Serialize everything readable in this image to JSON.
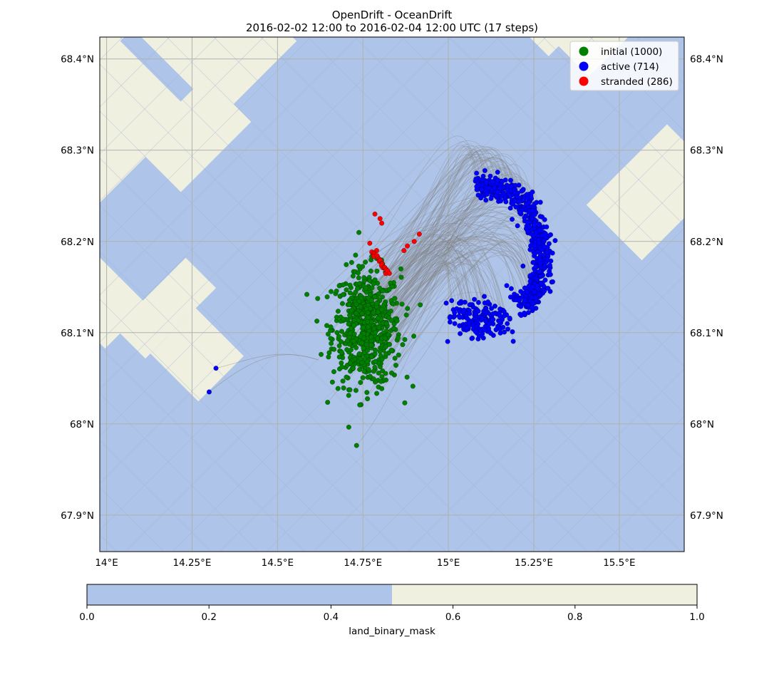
{
  "figure": {
    "title_line1": "OpenDrift - OceanDrift",
    "title_line2": "2016-02-02 12:00 to 2016-02-04 12:00 UTC (17 steps)"
  },
  "chart_data": [
    {
      "type": "scatter",
      "title": "OpenDrift - OceanDrift",
      "subtitle": "2016-02-02 12:00 to 2016-02-04 12:00 UTC (17 steps)",
      "xlim": [
        13.98,
        15.69
      ],
      "ylim": [
        67.86,
        68.424
      ],
      "x_ticks": [
        {
          "value": 14.0,
          "label": "14°E"
        },
        {
          "value": 14.25,
          "label": "14.25°E"
        },
        {
          "value": 14.5,
          "label": "14.5°E"
        },
        {
          "value": 14.75,
          "label": "14.75°E"
        },
        {
          "value": 15.0,
          "label": "15°E"
        },
        {
          "value": 15.25,
          "label": "15.25°E"
        },
        {
          "value": 15.5,
          "label": "15.5°E"
        }
      ],
      "y_ticks": [
        {
          "value": 67.9,
          "label": "67.9°N"
        },
        {
          "value": 68.0,
          "label": "68°N"
        },
        {
          "value": 68.1,
          "label": "68.1°N"
        },
        {
          "value": 68.2,
          "label": "68.2°N"
        },
        {
          "value": 68.3,
          "label": "68.3°N"
        },
        {
          "value": 68.4,
          "label": "68.4°N"
        }
      ],
      "grid": true,
      "legend_position": "top-right",
      "colors": {
        "ocean": "#aec4e8",
        "land": "#f0f0e0",
        "trajectory": "#808080",
        "grid": "#b0b0b0"
      },
      "series": [
        {
          "name": "initial (1000)",
          "color": "#008000",
          "count": 1000,
          "center": [
            14.76,
            68.105
          ],
          "spread": [
            0.05,
            0.032
          ]
        },
        {
          "name": "active (714)",
          "color": "#0000ff",
          "count": 714
        },
        {
          "name": "stranded (286)",
          "color": "#ff0000",
          "count": 286,
          "sample_points": [
            [
              14.785,
              68.23
            ],
            [
              14.8,
              68.225
            ],
            [
              14.805,
              68.22
            ],
            [
              14.77,
              68.198
            ],
            [
              14.79,
              68.19
            ],
            [
              14.8,
              68.18
            ],
            [
              14.81,
              68.172
            ],
            [
              14.82,
              68.168
            ],
            [
              14.87,
              68.19
            ],
            [
              14.88,
              68.195
            ],
            [
              14.9,
              68.2
            ],
            [
              14.915,
              68.208
            ]
          ]
        }
      ],
      "outlier_active_points": [
        [
          14.32,
          68.061
        ],
        [
          14.3,
          68.035
        ]
      ]
    },
    {
      "type": "heatmap",
      "label": "land_binary_mask",
      "range": [
        0.0,
        1.0
      ],
      "colors": [
        "#aec4e8",
        "#f0f0e0"
      ],
      "threshold": 0.5,
      "ticks": [
        {
          "value": 0.0,
          "label": "0.0"
        },
        {
          "value": 0.2,
          "label": "0.2"
        },
        {
          "value": 0.4,
          "label": "0.4"
        },
        {
          "value": 0.6,
          "label": "0.6"
        },
        {
          "value": 0.8,
          "label": "0.8"
        },
        {
          "value": 1.0,
          "label": "1.0"
        }
      ]
    }
  ]
}
